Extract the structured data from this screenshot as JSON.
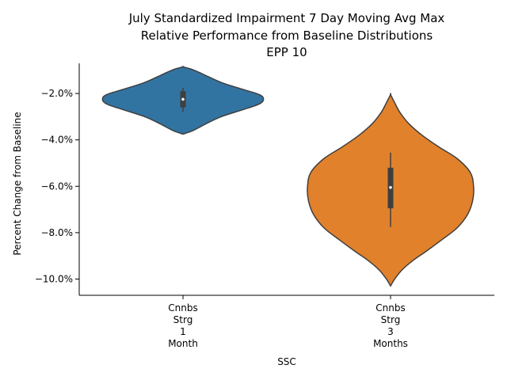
{
  "chart_data": {
    "type": "violin",
    "title_lines": [
      "July Standardized Impairment 7 Day Moving Avg Max",
      "Relative Performance from Baseline Distributions",
      "EPP 10"
    ],
    "xlabel": "SSC",
    "ylabel": "Percent Change from Baseline",
    "ylim": [
      -10.7,
      -0.7
    ],
    "yticks": [
      -10.0,
      -8.0,
      -6.0,
      -4.0,
      -2.0
    ],
    "ytick_labels": [
      "−10.0%",
      "−8.0%",
      "−6.0%",
      "−4.0%",
      "−2.0%"
    ],
    "categories": [
      [
        "Cnnbs",
        "Strg",
        "1",
        "Month"
      ],
      [
        "Cnnbs",
        "Strg",
        "3",
        "Months"
      ]
    ],
    "violins": [
      {
        "color": "#3274a1",
        "range": [
          -3.75,
          -0.85
        ],
        "median": -2.25,
        "q1": -2.6,
        "q3": -1.9,
        "whisker_low": -2.8,
        "whisker_high": -1.75,
        "profile": [
          [
            -3.75,
            0.0
          ],
          [
            -3.6,
            0.12
          ],
          [
            -3.3,
            0.28
          ],
          [
            -3.0,
            0.46
          ],
          [
            -2.7,
            0.72
          ],
          [
            -2.45,
            0.92
          ],
          [
            -2.25,
            0.97
          ],
          [
            -2.05,
            0.92
          ],
          [
            -1.8,
            0.7
          ],
          [
            -1.55,
            0.48
          ],
          [
            -1.3,
            0.32
          ],
          [
            -1.1,
            0.2
          ],
          [
            -0.95,
            0.1
          ],
          [
            -0.85,
            0.0
          ]
        ]
      },
      {
        "color": "#e1812c",
        "range": [
          -10.3,
          -2.05
        ],
        "median": -6.05,
        "q1": -6.95,
        "q3": -5.2,
        "whisker_low": -7.75,
        "whisker_high": -4.55,
        "profile": [
          [
            -10.3,
            0.0
          ],
          [
            -10.0,
            0.05
          ],
          [
            -9.6,
            0.14
          ],
          [
            -9.2,
            0.27
          ],
          [
            -8.8,
            0.43
          ],
          [
            -8.3,
            0.62
          ],
          [
            -7.8,
            0.8
          ],
          [
            -7.2,
            0.93
          ],
          [
            -6.6,
            0.99
          ],
          [
            -6.0,
            1.0
          ],
          [
            -5.4,
            0.96
          ],
          [
            -4.8,
            0.8
          ],
          [
            -4.3,
            0.58
          ],
          [
            -3.8,
            0.38
          ],
          [
            -3.3,
            0.22
          ],
          [
            -2.8,
            0.11
          ],
          [
            -2.4,
            0.05
          ],
          [
            -2.05,
            0.0
          ]
        ]
      }
    ]
  }
}
